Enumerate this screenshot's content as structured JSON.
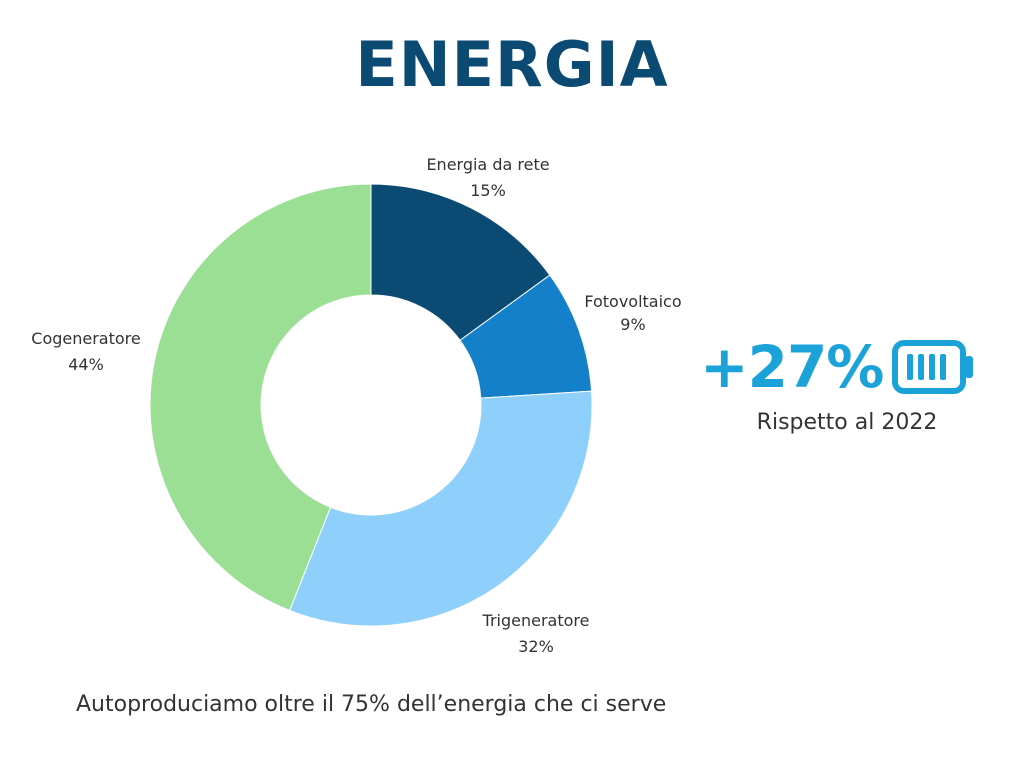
{
  "title": "ENERGIA",
  "chart_data": {
    "type": "pie",
    "style": "donut",
    "slices": [
      {
        "label": "Energia da rete",
        "value": 15,
        "value_label": "15%",
        "color": "#0B4A72"
      },
      {
        "label": "Fotovoltaico",
        "value": 9,
        "value_label": "9%",
        "color": "#1380C9"
      },
      {
        "label": "Trigeneratore",
        "value": 32,
        "value_label": "32%",
        "color": "#8ED0FB"
      },
      {
        "label": "Cogeneratore",
        "value": 44,
        "value_label": "44%",
        "color": "#9ADF93"
      }
    ]
  },
  "stat": {
    "value": "+27%",
    "caption": "Rispetto al 2022",
    "icon": "battery-icon",
    "color": "#1BA3D9"
  },
  "footer": "Autoproduciamo oltre il 75% dell’energia che ci serve",
  "colors": {
    "title": "#0B4A72",
    "text": "#333333"
  }
}
